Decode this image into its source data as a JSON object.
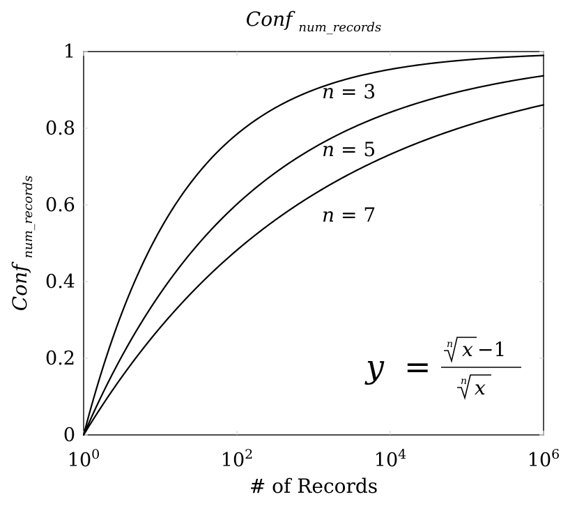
{
  "chart_data": {
    "type": "line",
    "title": {
      "base": "Conf",
      "sub": "num_records"
    },
    "xlabel": "# of Records",
    "ylabel": {
      "base": "Conf",
      "sub": "num_records"
    },
    "xscale": "log10",
    "xlim": [
      1,
      1000000
    ],
    "ylim": [
      0,
      1
    ],
    "xticks": [
      {
        "value": 1,
        "base": "10",
        "exp": "0"
      },
      {
        "value": 100,
        "base": "10",
        "exp": "2"
      },
      {
        "value": 10000,
        "base": "10",
        "exp": "4"
      },
      {
        "value": 1000000,
        "base": "10",
        "exp": "6"
      }
    ],
    "yticks": [
      {
        "value": 0,
        "label": "0"
      },
      {
        "value": 0.2,
        "label": "0.2"
      },
      {
        "value": 0.4,
        "label": "0.4"
      },
      {
        "value": 0.6,
        "label": "0.6"
      },
      {
        "value": 0.8,
        "label": "0.8"
      },
      {
        "value": 1,
        "label": "1"
      }
    ],
    "grid": false,
    "formula": "y = (x^(1/n) − 1) / x^(1/n)",
    "series": [
      {
        "name": "n = 3",
        "n": 3,
        "x": [
          1,
          10,
          100,
          1000,
          10000,
          100000,
          1000000
        ],
        "y": [
          0,
          0.536,
          0.785,
          0.9,
          0.954,
          0.978,
          0.99
        ]
      },
      {
        "name": "n = 5",
        "n": 5,
        "x": [
          1,
          10,
          100,
          1000,
          10000,
          100000,
          1000000
        ],
        "y": [
          0,
          0.369,
          0.602,
          0.749,
          0.842,
          0.9,
          0.937
        ]
      },
      {
        "name": "n = 7",
        "n": 7,
        "x": [
          1,
          10,
          100,
          1000,
          10000,
          100000,
          1000000
        ],
        "y": [
          0,
          0.281,
          0.482,
          0.627,
          0.732,
          0.807,
          0.861
        ]
      }
    ],
    "annotations": {
      "labels": [
        {
          "base": "n",
          "eq": " = ",
          "value": "3"
        },
        {
          "base": "n",
          "eq": " = ",
          "value": "5"
        },
        {
          "base": "n",
          "eq": " = ",
          "value": "7"
        }
      ],
      "formula": {
        "lhs": "y",
        "eq": "=",
        "num_index": "n",
        "num_radicand": "x",
        "num_tail": "−1",
        "den_index": "n",
        "den_radicand": "x"
      }
    },
    "colors": {
      "line": "#000000",
      "axis": "#000000",
      "tick": "#cccccc"
    }
  }
}
